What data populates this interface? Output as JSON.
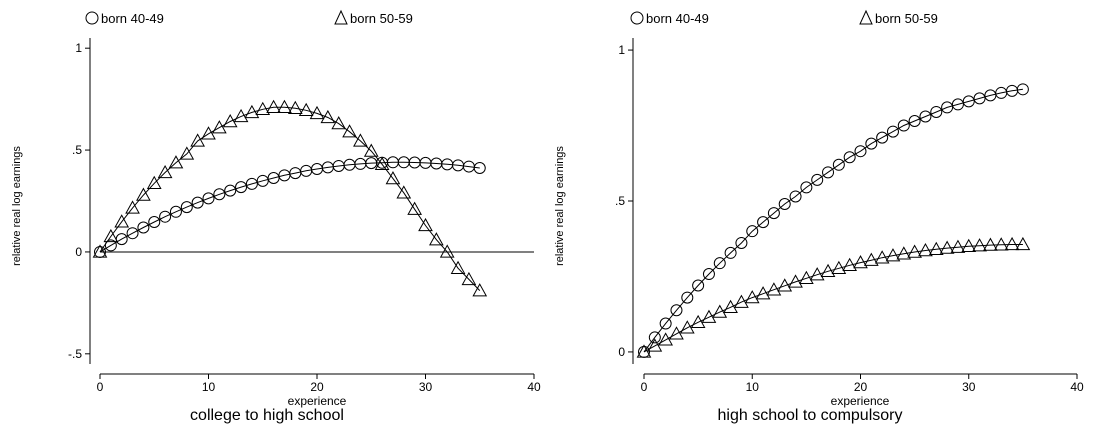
{
  "chart_data": [
    {
      "type": "line",
      "title": "college to high school",
      "xlabel": "experience",
      "ylabel": "relative real log earnings",
      "xlim": [
        0,
        40
      ],
      "ylim": [
        -0.55,
        1.05
      ],
      "xticks": [
        "0",
        "10",
        "20",
        "30",
        "40"
      ],
      "yticks": [
        {
          "value": 1,
          "label": "1"
        },
        {
          "value": 0.5,
          "label": ".5"
        },
        {
          "value": 0,
          "label": "0"
        },
        {
          "value": -0.5,
          "label": "-.5"
        }
      ],
      "zero_line": true,
      "legend_position": "top",
      "series": [
        {
          "name": "born 40-49",
          "marker": "circle",
          "x": [
            0,
            1,
            2,
            3,
            4,
            5,
            6,
            7,
            8,
            9,
            10,
            11,
            12,
            13,
            14,
            15,
            16,
            17,
            18,
            19,
            20,
            21,
            22,
            23,
            24,
            25,
            26,
            27,
            28,
            29,
            30,
            31,
            32,
            33,
            34,
            35
          ],
          "y": [
            0.0,
            0.032,
            0.063,
            0.092,
            0.12,
            0.147,
            0.173,
            0.197,
            0.22,
            0.242,
            0.263,
            0.283,
            0.301,
            0.318,
            0.334,
            0.349,
            0.363,
            0.376,
            0.387,
            0.398,
            0.407,
            0.415,
            0.422,
            0.428,
            0.432,
            0.436,
            0.438,
            0.44,
            0.44,
            0.439,
            0.437,
            0.434,
            0.43,
            0.425,
            0.419,
            0.412
          ]
        },
        {
          "name": "born 50-59",
          "marker": "triangle",
          "x": [
            0,
            1,
            2,
            3,
            4,
            5,
            6,
            7,
            8,
            9,
            10,
            11,
            12,
            13,
            14,
            15,
            16,
            17,
            18,
            19,
            20,
            21,
            22,
            23,
            24,
            25,
            26,
            27,
            28,
            29,
            30,
            31,
            32,
            33,
            34,
            35
          ],
          "y": [
            0.0,
            0.076,
            0.148,
            0.216,
            0.279,
            0.337,
            0.39,
            0.438,
            0.481,
            0.545,
            0.58,
            0.61,
            0.64,
            0.665,
            0.685,
            0.7,
            0.71,
            0.71,
            0.705,
            0.695,
            0.68,
            0.66,
            0.63,
            0.59,
            0.545,
            0.495,
            0.43,
            0.36,
            0.29,
            0.21,
            0.13,
            0.06,
            0.0,
            -0.08,
            -0.135,
            -0.19
          ]
        }
      ]
    },
    {
      "type": "line",
      "title": "high school to compulsory",
      "xlabel": "experience",
      "ylabel": "relative real log earnings",
      "xlim": [
        0,
        40
      ],
      "ylim": [
        -0.04,
        1.04
      ],
      "xticks": [
        "0",
        "10",
        "20",
        "30",
        "40"
      ],
      "yticks": [
        {
          "value": 1,
          "label": "1"
        },
        {
          "value": 0.5,
          "label": ".5"
        },
        {
          "value": 0,
          "label": "0"
        }
      ],
      "zero_line": false,
      "legend_position": "top",
      "series": [
        {
          "name": "born 40-49",
          "marker": "circle",
          "x": [
            0,
            1,
            2,
            3,
            4,
            5,
            6,
            7,
            8,
            9,
            10,
            11,
            12,
            13,
            14,
            15,
            16,
            17,
            18,
            19,
            20,
            21,
            22,
            23,
            24,
            25,
            26,
            27,
            28,
            29,
            30,
            31,
            32,
            33,
            34,
            35
          ],
          "y": [
            0.0,
            0.048,
            0.094,
            0.138,
            0.18,
            0.22,
            0.258,
            0.294,
            0.328,
            0.361,
            0.4,
            0.43,
            0.46,
            0.49,
            0.515,
            0.545,
            0.57,
            0.595,
            0.62,
            0.645,
            0.665,
            0.69,
            0.71,
            0.73,
            0.75,
            0.765,
            0.78,
            0.795,
            0.81,
            0.82,
            0.83,
            0.84,
            0.85,
            0.858,
            0.865,
            0.87
          ]
        },
        {
          "name": "born 50-59",
          "marker": "triangle",
          "x": [
            0,
            1,
            2,
            3,
            4,
            5,
            6,
            7,
            8,
            9,
            10,
            11,
            12,
            13,
            14,
            15,
            16,
            17,
            18,
            19,
            20,
            21,
            22,
            23,
            24,
            25,
            26,
            27,
            28,
            29,
            30,
            31,
            32,
            33,
            34,
            35
          ],
          "y": [
            0.0,
            0.02,
            0.04,
            0.06,
            0.08,
            0.098,
            0.115,
            0.132,
            0.148,
            0.165,
            0.18,
            0.193,
            0.206,
            0.219,
            0.232,
            0.244,
            0.256,
            0.267,
            0.277,
            0.287,
            0.296,
            0.304,
            0.312,
            0.319,
            0.325,
            0.331,
            0.336,
            0.34,
            0.344,
            0.347,
            0.35,
            0.352,
            0.354,
            0.355,
            0.356,
            0.356
          ]
        }
      ]
    }
  ]
}
